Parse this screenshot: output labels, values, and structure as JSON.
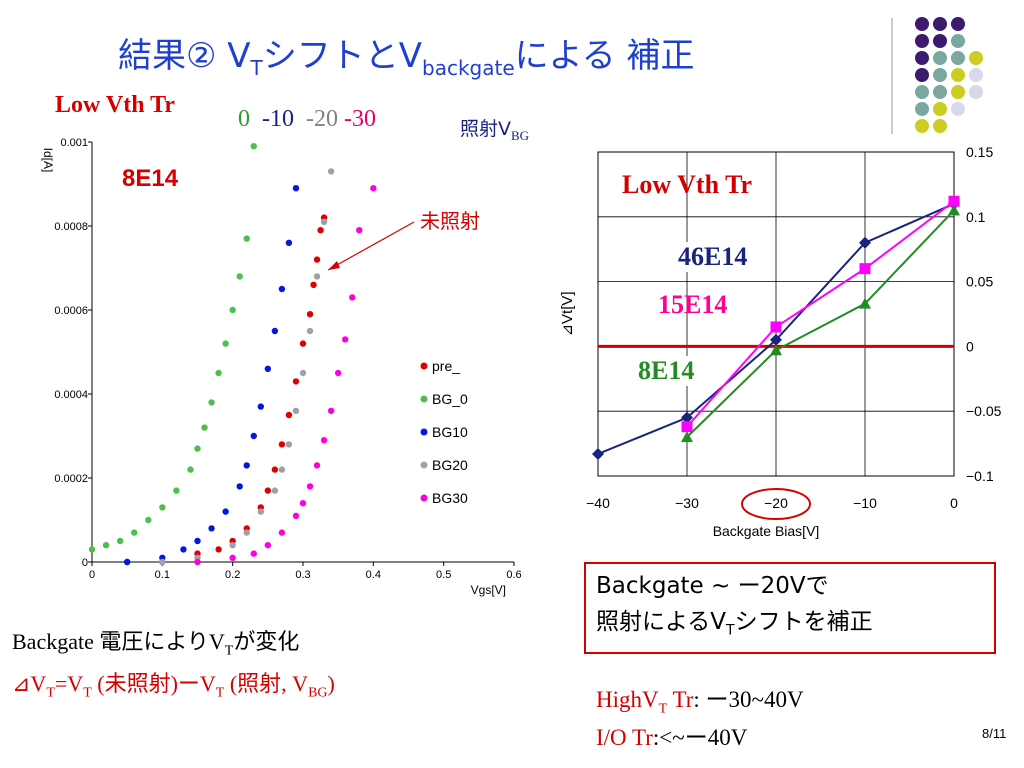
{
  "slide": {
    "title_main": "結果② V",
    "title_sub_T": "T",
    "title_mid": "シフトとV",
    "title_sub_backgate": "backgate",
    "title_end": "による 補正",
    "page_number": "8/11"
  },
  "left_chart_header": {
    "label": "Low Vth Tr",
    "bg_values": [
      "0",
      "-10",
      "-20",
      "-30"
    ],
    "bg_colors": [
      "#2ca02c",
      "#1a237e",
      "#808080",
      "#e0006e"
    ],
    "irradiation_label": "照射V",
    "irradiation_sub": "BG"
  },
  "right_chart_labels": {
    "title": "Low Vth Tr",
    "dose_46": "46E14",
    "dose_15": "15E14",
    "dose_8": "8E14"
  },
  "callout": {
    "line1": "Backgate ~ ー20Vで",
    "line2_a": "照射によるV",
    "line2_sub": "T",
    "line2_b": "シフトを補正"
  },
  "bottom_left": {
    "line1_a": "Backgate 電圧によりV",
    "line1_sub": "T",
    "line1_b": "が変化",
    "line2_a": "⊿V",
    "line2_sub1": "T",
    "line2_b": "=V",
    "line2_sub2": "T",
    "line2_c": " (未照射)ーV",
    "line2_sub3": "T",
    "line2_d": " (照射, V",
    "line2_sub4": "BG",
    "line2_e": ")"
  },
  "bottom_right": {
    "line1_label": "HighV",
    "line1_sub": "T",
    "line1_label2": " Tr",
    "line1_value": ": ー30~40V",
    "line2_label": "I/O Tr",
    "line2_value": ":<~ー40V"
  },
  "colors": {
    "title_blue": "#1f3fd0",
    "red": "#d40000",
    "dark_blue": "#1a237e",
    "magenta": "#ff00ff",
    "green": "#228b22"
  },
  "decor_dots": {
    "colors": [
      "#3d1a6e",
      "#7aa8a0",
      "#cccc22",
      "#d8d8ea"
    ]
  },
  "chart_data": [
    {
      "type": "scatter",
      "title": "",
      "annotation_dose": "8E14",
      "annotation_unirradiated": "未照射",
      "xlabel": "Vgs[V]",
      "ylabel": "Id[A]",
      "xlim": [
        0,
        0.6
      ],
      "ylim": [
        0,
        0.001
      ],
      "x_ticks": [
        "0",
        "0.1",
        "0.2",
        "0.3",
        "0.4",
        "0.5",
        "0.6"
      ],
      "y_ticks": [
        "0",
        "0.0002",
        "0.0004",
        "0.0006",
        "0.0008",
        "0.001"
      ],
      "legend_position": "right",
      "series": [
        {
          "name": "pre_",
          "color": "#e00000",
          "x": [
            0.05,
            0.1,
            0.15,
            0.18,
            0.2,
            0.22,
            0.24,
            0.25,
            0.26,
            0.27,
            0.28,
            0.29,
            0.3,
            0.31,
            0.315,
            0.32,
            0.325,
            0.33
          ],
          "y": [
            0.0,
            0.0,
            2e-05,
            3e-05,
            5e-05,
            8e-05,
            0.00013,
            0.00017,
            0.00022,
            0.00028,
            0.00035,
            0.00043,
            0.00052,
            0.00059,
            0.00066,
            0.00072,
            0.00079,
            0.00082
          ]
        },
        {
          "name": "BG_0",
          "color": "#4cbf4c",
          "x": [
            0,
            0.02,
            0.04,
            0.06,
            0.08,
            0.1,
            0.12,
            0.14,
            0.15,
            0.16,
            0.17,
            0.18,
            0.19,
            0.2,
            0.21,
            0.22,
            0.23
          ],
          "y": [
            3e-05,
            4e-05,
            5e-05,
            7e-05,
            0.0001,
            0.00013,
            0.00017,
            0.00022,
            0.00027,
            0.00032,
            0.00038,
            0.00045,
            0.00052,
            0.0006,
            0.00068,
            0.00077,
            0.00099
          ]
        },
        {
          "name": "BG10",
          "color": "#0018e0",
          "x": [
            0.05,
            0.1,
            0.13,
            0.15,
            0.17,
            0.19,
            0.21,
            0.22,
            0.23,
            0.24,
            0.25,
            0.26,
            0.27,
            0.28,
            0.29
          ],
          "y": [
            0.0,
            1e-05,
            3e-05,
            5e-05,
            8e-05,
            0.00012,
            0.00018,
            0.00023,
            0.0003,
            0.00037,
            0.00046,
            0.00055,
            0.00065,
            0.00076,
            0.00089
          ]
        },
        {
          "name": "BG20",
          "color": "#a0a0a8",
          "x": [
            0.1,
            0.15,
            0.2,
            0.22,
            0.24,
            0.26,
            0.27,
            0.28,
            0.29,
            0.3,
            0.31,
            0.32,
            0.33,
            0.34
          ],
          "y": [
            0.0,
            1e-05,
            4e-05,
            7e-05,
            0.00012,
            0.00017,
            0.00022,
            0.00028,
            0.00036,
            0.00045,
            0.00055,
            0.00068,
            0.00081,
            0.00093
          ]
        },
        {
          "name": "BG30",
          "color": "#ff00dd",
          "x": [
            0.15,
            0.2,
            0.23,
            0.25,
            0.27,
            0.29,
            0.3,
            0.31,
            0.32,
            0.33,
            0.34,
            0.35,
            0.36,
            0.37,
            0.38,
            0.4
          ],
          "y": [
            0.0,
            1e-05,
            2e-05,
            4e-05,
            7e-05,
            0.00011,
            0.00014,
            0.00018,
            0.00023,
            0.00029,
            0.00036,
            0.00045,
            0.00053,
            0.00063,
            0.00079,
            0.00089
          ]
        }
      ]
    },
    {
      "type": "line",
      "title": "",
      "xlabel": "Backgate Bias[V]",
      "ylabel": "⊿Vt[V]",
      "xlim": [
        -40,
        0
      ],
      "ylim": [
        -0.1,
        0.15
      ],
      "x_ticks": [
        "-40",
        "-30",
        "-20",
        "-10",
        "0"
      ],
      "y_ticks": [
        "-0.1",
        "-0.05",
        "0",
        "0.05",
        "0.1",
        "0.15"
      ],
      "highlighted_x": "-20",
      "reference_line_y": 0,
      "grid": true,
      "series": [
        {
          "name": "46E14",
          "color": "#1a237e",
          "marker": "diamond",
          "x": [
            -40,
            -30,
            -20,
            -10,
            0
          ],
          "y": [
            -0.083,
            -0.055,
            0.005,
            0.08,
            0.11
          ]
        },
        {
          "name": "15E14",
          "color": "#ff00ff",
          "marker": "square",
          "x": [
            -30,
            -20,
            -10,
            0
          ],
          "y": [
            -0.062,
            0.015,
            0.06,
            0.112
          ]
        },
        {
          "name": "8E14",
          "color": "#228b22",
          "marker": "triangle",
          "x": [
            -30,
            -20,
            -10,
            0
          ],
          "y": [
            -0.07,
            -0.003,
            0.033,
            0.105
          ]
        }
      ]
    }
  ]
}
